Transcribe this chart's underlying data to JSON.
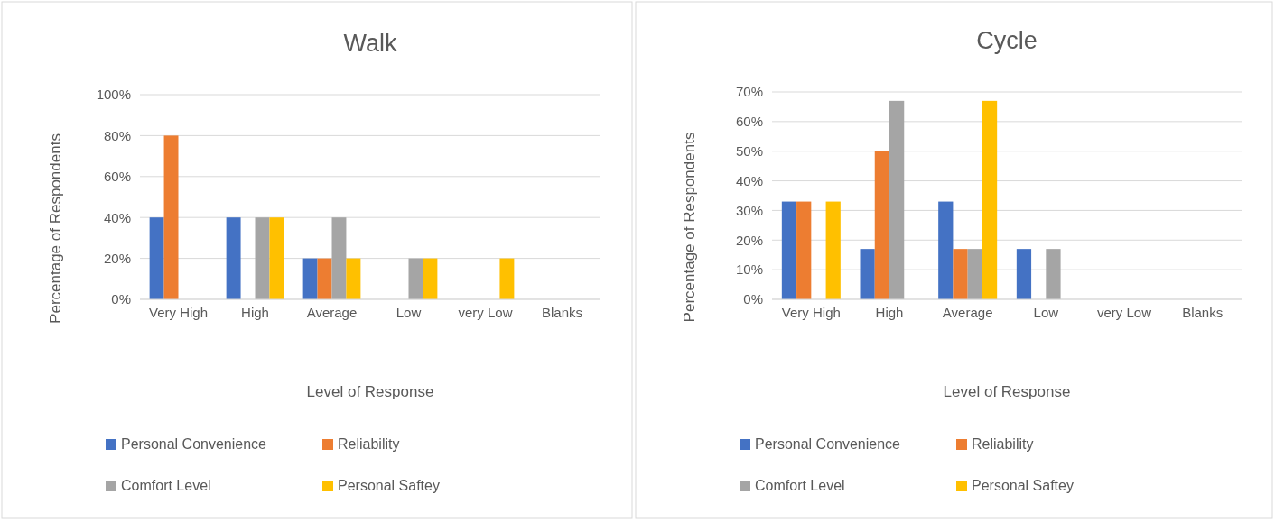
{
  "chart_data": [
    {
      "type": "bar",
      "title": "Walk",
      "xlabel": "Level of Response",
      "ylabel": "Percentage of Respondents",
      "categories": [
        "Very High",
        "High",
        "Average",
        "Low",
        "very Low",
        "Blanks"
      ],
      "series": [
        {
          "name": "Personal Convenience",
          "color": "#4472c4",
          "values": [
            40,
            40,
            20,
            0,
            0,
            0
          ]
        },
        {
          "name": "Reliability",
          "color": "#ed7d31",
          "values": [
            80,
            0,
            20,
            0,
            0,
            0
          ]
        },
        {
          "name": "Comfort Level",
          "color": "#a5a5a5",
          "values": [
            0,
            40,
            40,
            20,
            0,
            0
          ]
        },
        {
          "name": "Personal Saftey",
          "color": "#ffc000",
          "values": [
            0,
            40,
            20,
            20,
            20,
            0
          ]
        }
      ],
      "ylim": [
        0,
        100
      ],
      "yticks": [
        {
          "value": 0,
          "label": "0%"
        },
        {
          "value": 20,
          "label": "20%"
        },
        {
          "value": 40,
          "label": "40%"
        },
        {
          "value": 60,
          "label": "60%"
        },
        {
          "value": 80,
          "label": "80%"
        },
        {
          "value": 100,
          "label": "100%"
        }
      ],
      "grid": "y",
      "legend": "bottom"
    },
    {
      "type": "bar",
      "title": "Cycle",
      "xlabel": "Level of Response",
      "ylabel": "Percentage of Respondents",
      "categories": [
        "Very High",
        "High",
        "Average",
        "Low",
        "very Low",
        "Blanks"
      ],
      "series": [
        {
          "name": "Personal Convenience",
          "color": "#4472c4",
          "values": [
            33,
            17,
            33,
            17,
            0,
            0
          ]
        },
        {
          "name": "Reliability",
          "color": "#ed7d31",
          "values": [
            33,
            50,
            17,
            0,
            0,
            0
          ]
        },
        {
          "name": "Comfort Level",
          "color": "#a5a5a5",
          "values": [
            0,
            67,
            17,
            17,
            0,
            0
          ]
        },
        {
          "name": "Personal Saftey",
          "color": "#ffc000",
          "values": [
            33,
            0,
            67,
            0,
            0,
            0
          ]
        }
      ],
      "ylim": [
        0,
        70
      ],
      "yticks": [
        {
          "value": 0,
          "label": "0%"
        },
        {
          "value": 10,
          "label": "10%"
        },
        {
          "value": 20,
          "label": "20%"
        },
        {
          "value": 30,
          "label": "30%"
        },
        {
          "value": 40,
          "label": "40%"
        },
        {
          "value": 50,
          "label": "50%"
        },
        {
          "value": 60,
          "label": "60%"
        },
        {
          "value": 70,
          "label": "70%"
        }
      ],
      "grid": "y",
      "legend": "bottom"
    }
  ]
}
